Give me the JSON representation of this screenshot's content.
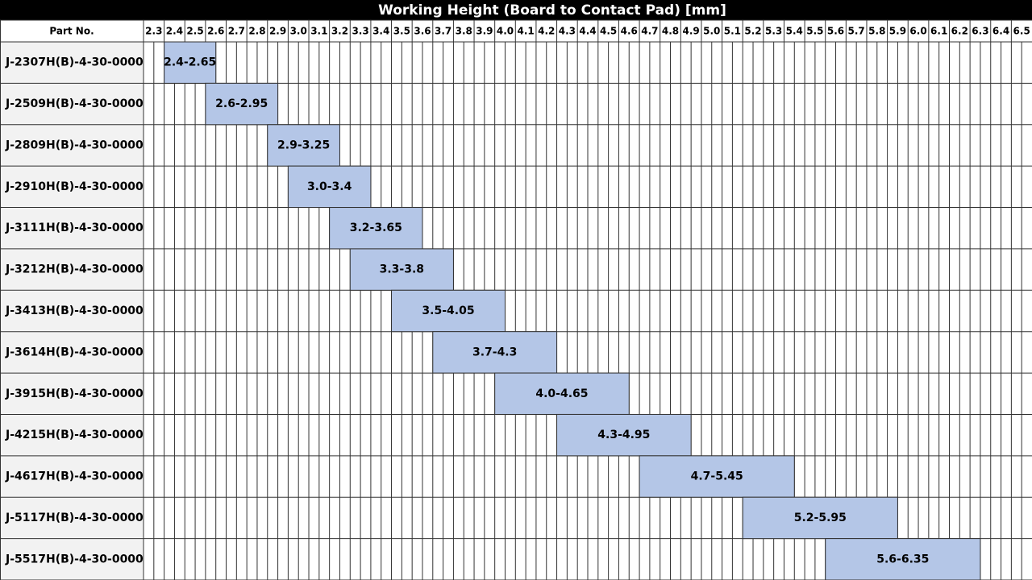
{
  "chart_data": {
    "type": "range-bar",
    "title": "Working Height (Board to Contact Pad) [mm]",
    "category_header": "Part No.",
    "categories": [
      "J-2307H(B)-4-30-0000",
      "J-2509H(B)-4-30-0000",
      "J-2809H(B)-4-30-0000",
      "J-2910H(B)-4-30-0000",
      "J-3111H(B)-4-30-0000",
      "J-3212H(B)-4-30-0000",
      "J-3413H(B)-4-30-0000",
      "J-3614H(B)-4-30-0000",
      "J-3915H(B)-4-30-0000",
      "J-4215H(B)-4-30-0000",
      "J-4617H(B)-4-30-0000",
      "J-5117H(B)-4-30-0000",
      "J-5517H(B)-4-30-0000"
    ],
    "series": [
      {
        "color": "#b4c6e7",
        "values": [
          [
            2.4,
            2.65
          ],
          [
            2.6,
            2.95
          ],
          [
            2.9,
            3.25
          ],
          [
            3.0,
            3.4
          ],
          [
            3.2,
            3.65
          ],
          [
            3.3,
            3.8
          ],
          [
            3.5,
            4.05
          ],
          [
            3.7,
            4.3
          ],
          [
            4.0,
            4.65
          ],
          [
            4.3,
            4.95
          ],
          [
            4.7,
            5.45
          ],
          [
            5.2,
            5.95
          ],
          [
            5.6,
            6.35
          ]
        ],
        "value_labels": [
          "2.4-2.65",
          "2.6-2.95",
          "2.9-3.25",
          "3.0-3.4",
          "3.2-3.65",
          "3.3-3.8",
          "3.5-4.05",
          "3.7-4.3",
          "4.0-4.65",
          "4.3-4.95",
          "4.7-5.45",
          "5.2-5.95",
          "5.6-6.35"
        ]
      }
    ],
    "xlim": [
      2.3,
      6.6
    ],
    "xticks": [
      2.3,
      2.4,
      2.5,
      2.6,
      2.7,
      2.8,
      2.9,
      {
        "value": 3,
        "label": "3.0"
      },
      3.1,
      3.2,
      3.3,
      3.4,
      3.5,
      3.6,
      3.7,
      3.8,
      3.9,
      {
        "value": 4,
        "label": "4.0"
      },
      4.1,
      4.2,
      4.3,
      4.4,
      4.5,
      4.6,
      4.7,
      4.8,
      4.9,
      {
        "value": 5,
        "label": "5.0"
      },
      5.1,
      5.2,
      5.3,
      5.4,
      5.5,
      5.6,
      5.7,
      5.8,
      5.9,
      {
        "value": 6,
        "label": "6.0"
      },
      6.1,
      6.2,
      6.3,
      6.4,
      6.5
    ],
    "grid": true
  }
}
